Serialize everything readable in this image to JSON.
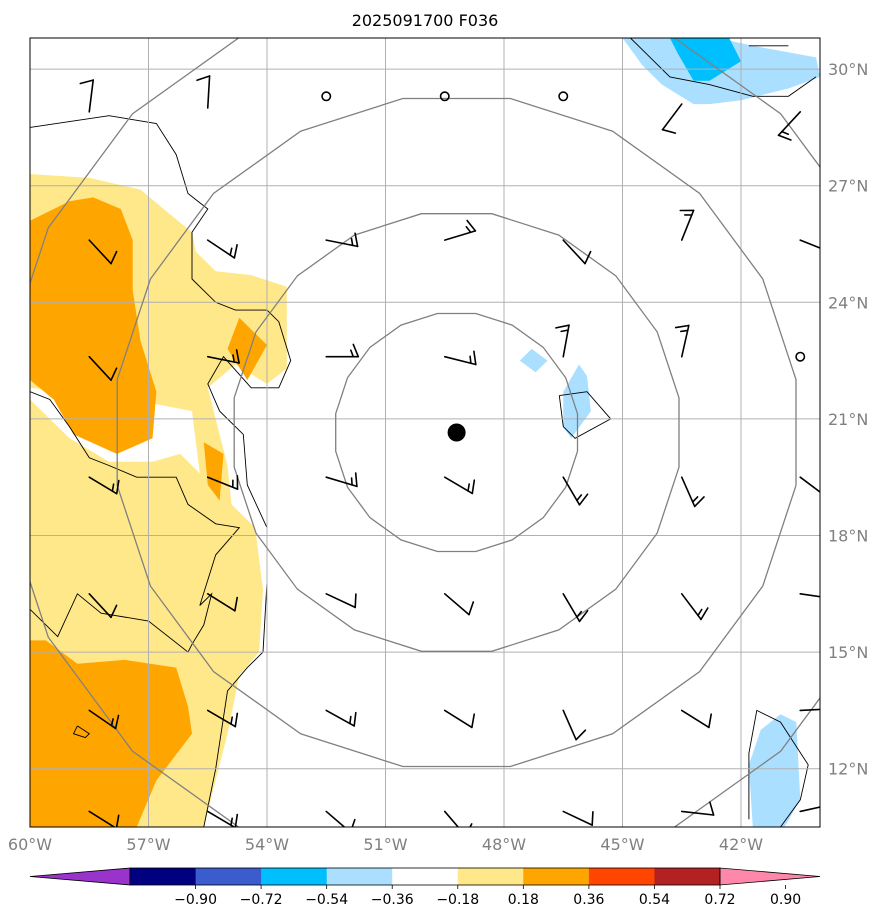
{
  "title": "2025091700 F036",
  "map": {
    "lon_range": [
      -60,
      -40
    ],
    "lat_range": [
      10.5,
      30.8
    ],
    "lon_ticks": [
      {
        "value": -60,
        "label": "60°W"
      },
      {
        "value": -57,
        "label": "57°W"
      },
      {
        "value": -54,
        "label": "54°W"
      },
      {
        "value": -51,
        "label": "51°W"
      },
      {
        "value": -48,
        "label": "48°W"
      },
      {
        "value": -45,
        "label": "45°W"
      },
      {
        "value": -42,
        "label": "42°W"
      }
    ],
    "lat_ticks": [
      {
        "value": 30,
        "label": "30°N"
      },
      {
        "value": 27,
        "label": "27°N"
      },
      {
        "value": 24,
        "label": "24°N"
      },
      {
        "value": 21,
        "label": "21°N"
      },
      {
        "value": 18,
        "label": "18°N"
      },
      {
        "value": 15,
        "label": "15°N"
      },
      {
        "value": 12,
        "label": "12°N"
      }
    ],
    "gridlines": true,
    "center": {
      "lon": -49.2,
      "lat": 20.65
    },
    "range_ring_radii_deg": [
      3.1,
      5.7,
      8.7,
      11.6
    ],
    "colors": {
      "ring": "#808080",
      "grid": "#b0b0b0",
      "barb": "#000000",
      "contour": "#000000",
      "center": "#000000"
    }
  },
  "colorbar": {
    "colors": [
      "#9933cc",
      "#000080",
      "#3a5ccc",
      "#00bfff",
      "#aadfff",
      "#ffffff",
      "#ffe88a",
      "#ffa500",
      "#ff4500",
      "#b22222",
      "#ff88aa"
    ],
    "labels": [
      "−0.90",
      "−0.72",
      "−0.54",
      "−0.36",
      "−0.18",
      "0.18",
      "0.36",
      "0.54",
      "0.72",
      "0.90"
    ],
    "extend": "both"
  },
  "fills": [
    {
      "level": "0.36",
      "color": "#ffe88a",
      "points": [
        [
          -60,
          27.3
        ],
        [
          -58.5,
          27.2
        ],
        [
          -57.2,
          26.9
        ],
        [
          -56.5,
          26.3
        ],
        [
          -55.9,
          25.8
        ],
        [
          -55.8,
          25.3
        ],
        [
          -55.3,
          24.8
        ],
        [
          -54.4,
          24.7
        ],
        [
          -53.5,
          24.4
        ],
        [
          -53.5,
          23.2
        ],
        [
          -53.5,
          22.3
        ],
        [
          -54,
          21.9
        ],
        [
          -54.8,
          22.4
        ],
        [
          -55.5,
          21.8
        ],
        [
          -55.2,
          20.6
        ],
        [
          -55,
          19.8
        ],
        [
          -54.9,
          18.8
        ],
        [
          -54.3,
          18.2
        ],
        [
          -54.1,
          16.6
        ],
        [
          -54.2,
          15.0
        ],
        [
          -54.7,
          14.4
        ],
        [
          -55,
          12.9
        ],
        [
          -55.6,
          10.5
        ],
        [
          -60,
          10.5
        ],
        [
          -60,
          15.7
        ],
        [
          -59,
          15.3
        ],
        [
          -57.8,
          14.8
        ],
        [
          -56.8,
          14.9
        ],
        [
          -55.8,
          14.9
        ],
        [
          -55.5,
          14.5
        ],
        [
          -57.5,
          14
        ],
        [
          -59.8,
          14
        ],
        [
          -60,
          14.5
        ],
        [
          -60,
          15.7
        ],
        [
          -60,
          21.5
        ],
        [
          -59,
          20.5
        ],
        [
          -58,
          19.9
        ],
        [
          -56.9,
          19.9
        ],
        [
          -56.2,
          20.1
        ],
        [
          -55.7,
          19.6
        ],
        [
          -55.9,
          21.2
        ],
        [
          -57.4,
          21.5
        ],
        [
          -60,
          21.8
        ]
      ]
    },
    {
      "level": "0.54",
      "color": "#ffa500",
      "points": [
        [
          -60,
          26.1
        ],
        [
          -59,
          26.6
        ],
        [
          -58.4,
          26.7
        ],
        [
          -57.7,
          26.4
        ],
        [
          -57.4,
          25.6
        ],
        [
          -57.4,
          24.3
        ],
        [
          -57.2,
          23.0
        ],
        [
          -56.8,
          21.7
        ],
        [
          -56.9,
          20.5
        ],
        [
          -57.8,
          20.1
        ],
        [
          -58.9,
          20.6
        ],
        [
          -59.4,
          21.5
        ],
        [
          -60,
          22.0
        ]
      ]
    },
    {
      "level": "0.54",
      "color": "#ffa500",
      "points": [
        [
          -54.7,
          23.6
        ],
        [
          -54.0,
          22.9
        ],
        [
          -54.5,
          22.0
        ],
        [
          -55.0,
          22.8
        ]
      ]
    },
    {
      "level": "0.54",
      "color": "#ffa500",
      "points": [
        [
          -55.6,
          20.4
        ],
        [
          -55.1,
          20.1
        ],
        [
          -55.2,
          18.9
        ],
        [
          -55.5,
          19.3
        ]
      ]
    },
    {
      "level": "0.54",
      "color": "#ffa500",
      "points": [
        [
          -60,
          15.3
        ],
        [
          -59.6,
          15.3
        ],
        [
          -58.8,
          14.7
        ],
        [
          -57.6,
          14.8
        ],
        [
          -56.3,
          14.6
        ],
        [
          -56.0,
          13.6
        ],
        [
          -55.9,
          12.9
        ],
        [
          -56.8,
          11.7
        ],
        [
          -57.3,
          10.5
        ],
        [
          -60,
          10.5
        ]
      ]
    },
    {
      "level": "-0.18",
      "color": "#aadfff",
      "points": [
        [
          -45.0,
          30.8
        ],
        [
          -42.6,
          30.8
        ],
        [
          -41.7,
          30.6
        ],
        [
          -40.1,
          30.3
        ],
        [
          -40,
          29.8
        ],
        [
          -40.8,
          29.5
        ],
        [
          -42.0,
          29.2
        ],
        [
          -42.8,
          29.1
        ],
        [
          -43.2,
          29.1
        ],
        [
          -44.0,
          29.6
        ],
        [
          -44.5,
          30.1
        ]
      ]
    },
    {
      "level": "-0.36",
      "color": "#00bfff",
      "points": [
        [
          -43.8,
          30.8
        ],
        [
          -42.3,
          30.8
        ],
        [
          -42.0,
          30.2
        ],
        [
          -42.8,
          29.7
        ],
        [
          -43.2,
          29.7
        ],
        [
          -43.6,
          30.4
        ]
      ]
    },
    {
      "level": "-0.18",
      "color": "#aadfff",
      "points": [
        [
          -46.1,
          22.4
        ],
        [
          -45.9,
          22.1
        ],
        [
          -45.8,
          21.2
        ],
        [
          -46.3,
          20.5
        ],
        [
          -46.5,
          20.8
        ],
        [
          -46.5,
          21.7
        ]
      ]
    },
    {
      "level": "-0.18",
      "color": "#aadfff",
      "points": [
        [
          -47.3,
          22.8
        ],
        [
          -46.9,
          22.5
        ],
        [
          -47.2,
          22.2
        ],
        [
          -47.6,
          22.5
        ]
      ]
    },
    {
      "level": "-0.18",
      "color": "#aadfff",
      "points": [
        [
          -41.0,
          13.4
        ],
        [
          -40.6,
          13.2
        ],
        [
          -40.5,
          11.2
        ],
        [
          -40.9,
          10.5
        ],
        [
          -41.7,
          10.5
        ],
        [
          -41.8,
          12.1
        ],
        [
          -41.5,
          13.0
        ]
      ]
    }
  ],
  "contours": [
    [
      [
        -60,
        28.5
      ],
      [
        -58.0,
        28.8
      ],
      [
        -56.8,
        28.6
      ],
      [
        -56.3,
        27.8
      ],
      [
        -56.0,
        26.8
      ],
      [
        -55.5,
        26.4
      ],
      [
        -55.9,
        25.8
      ],
      [
        -55.9,
        24.6
      ],
      [
        -55.3,
        24.0
      ],
      [
        -54.8,
        23.8
      ],
      [
        -54.0,
        23.8
      ],
      [
        -53.7,
        23.5
      ],
      [
        -53.4,
        22.5
      ],
      [
        -53.7,
        21.8
      ],
      [
        -54.4,
        21.8
      ],
      [
        -55.1,
        22.6
      ],
      [
        -55.5,
        21.9
      ],
      [
        -55.2,
        21.2
      ],
      [
        -54.6,
        20.6
      ],
      [
        -54.5,
        19.3
      ],
      [
        -54.0,
        18.2
      ],
      [
        -54.0,
        16.8
      ],
      [
        -54.1,
        15.0
      ],
      [
        -54.5,
        14.6
      ],
      [
        -55.0,
        14.0
      ],
      [
        -55.3,
        12.0
      ],
      [
        -55.6,
        10.5
      ]
    ],
    [
      [
        -60,
        21.7
      ],
      [
        -59.5,
        21.5
      ],
      [
        -59.0,
        20.8
      ],
      [
        -58.5,
        20.0
      ],
      [
        -58.0,
        19.8
      ],
      [
        -57.3,
        19.5
      ],
      [
        -56.3,
        19.5
      ],
      [
        -56.0,
        18.8
      ],
      [
        -55.3,
        18.3
      ],
      [
        -54.7,
        18.2
      ],
      [
        -55.3,
        17.5
      ],
      [
        -55.7,
        16.2
      ],
      [
        -55.4,
        16.5
      ],
      [
        -55.6,
        15.7
      ],
      [
        -55.9,
        15.2
      ],
      [
        -56.0,
        15.0
      ],
      [
        -57.0,
        15.8
      ],
      [
        -58.2,
        16.0
      ],
      [
        -58.8,
        16.5
      ],
      [
        -59.3,
        15.4
      ],
      [
        -60,
        16.1
      ]
    ],
    [
      [
        -44.8,
        30.8
      ],
      [
        -43.8,
        29.8
      ],
      [
        -42.8,
        29.6
      ],
      [
        -41.7,
        29.3
      ],
      [
        -40.8,
        29.3
      ],
      [
        -40.1,
        29.8
      ]
    ],
    [
      [
        -41.8,
        30.6
      ],
      [
        -40.8,
        30.6
      ]
    ],
    [
      [
        -46.6,
        21.6
      ],
      [
        -45.9,
        21.7
      ],
      [
        -45.3,
        21.0
      ],
      [
        -46.2,
        20.5
      ],
      [
        -46.5,
        20.8
      ],
      [
        -46.6,
        21.6
      ]
    ],
    [
      [
        -41.8,
        10.7
      ],
      [
        -41.8,
        12.4
      ],
      [
        -41.6,
        13.5
      ],
      [
        -41.0,
        13.2
      ],
      [
        -40.3,
        12.1
      ],
      [
        -40.5,
        11.2
      ],
      [
        -41.0,
        10.5
      ]
    ],
    [
      [
        -58.8,
        13.1
      ],
      [
        -58.5,
        12.9
      ],
      [
        -58.6,
        12.8
      ],
      [
        -58.9,
        12.9
      ],
      [
        -58.8,
        13.1
      ]
    ]
  ],
  "wind_barbs": [
    {
      "lon": -58.5,
      "lat": 28.9,
      "u": -1.0,
      "v": -8.0
    },
    {
      "lon": -55.5,
      "lat": 29.0,
      "u": -0.5,
      "v": -8.5
    },
    {
      "lon": -52.5,
      "lat": 29.3,
      "calm": true
    },
    {
      "lon": -49.5,
      "lat": 29.3,
      "calm": true
    },
    {
      "lon": -46.5,
      "lat": 29.3,
      "calm": true
    },
    {
      "lon": -43.5,
      "lat": 29.1,
      "u": 3.0,
      "v": 4.0
    },
    {
      "lon": -40.5,
      "lat": 28.9,
      "u": 6.5,
      "v": 7.0
    },
    {
      "lon": -58.5,
      "lat": 25.6,
      "u": -6.0,
      "v": 6.5
    },
    {
      "lon": -55.5,
      "lat": 25.6,
      "u": -9.0,
      "v": 6.0
    },
    {
      "lon": -52.5,
      "lat": 25.6,
      "u": -10.0,
      "v": 2.0
    },
    {
      "lon": -49.5,
      "lat": 25.6,
      "u": -10.0,
      "v": -3.0
    },
    {
      "lon": -46.5,
      "lat": 25.6,
      "u": -6.0,
      "v": 6.5
    },
    {
      "lon": -43.5,
      "lat": 25.6,
      "u": -4.0,
      "v": -10.0
    },
    {
      "lon": -40.5,
      "lat": 25.6,
      "u": -10.0,
      "v": 4.0
    },
    {
      "lon": -58.5,
      "lat": 22.6,
      "u": -6.0,
      "v": 6.5
    },
    {
      "lon": -55.5,
      "lat": 22.6,
      "u": -10.0,
      "v": 2.0
    },
    {
      "lon": -52.5,
      "lat": 22.6,
      "u": -11.0,
      "v": 0.0
    },
    {
      "lon": -49.5,
      "lat": 22.6,
      "u": -10.0,
      "v": 2.5
    },
    {
      "lon": -46.5,
      "lat": 22.6,
      "u": -2.0,
      "v": -11.0
    },
    {
      "lon": -43.5,
      "lat": 22.6,
      "u": -2.5,
      "v": -11.0
    },
    {
      "lon": -40.5,
      "lat": 22.6,
      "calm": true
    },
    {
      "lon": -58.5,
      "lat": 19.5,
      "u": -10.0,
      "v": 6.0
    },
    {
      "lon": -55.5,
      "lat": 19.5,
      "u": -10.0,
      "v": 4.0
    },
    {
      "lon": -52.5,
      "lat": 19.5,
      "u": -10.0,
      "v": 3.0
    },
    {
      "lon": -49.5,
      "lat": 19.5,
      "u": -8.5,
      "v": 5.0
    },
    {
      "lon": -46.5,
      "lat": 19.5,
      "u": -5.0,
      "v": 8.5
    },
    {
      "lon": -43.5,
      "lat": 19.5,
      "u": -4.0,
      "v": 9.0
    },
    {
      "lon": -40.5,
      "lat": 19.5,
      "u": -8.0,
      "v": 6.0
    },
    {
      "lon": -58.5,
      "lat": 16.5,
      "u": -6.0,
      "v": 6.5
    },
    {
      "lon": -55.5,
      "lat": 16.5,
      "u": -8.0,
      "v": 5.0
    },
    {
      "lon": -52.5,
      "lat": 16.5,
      "u": -8.5,
      "v": 4.0
    },
    {
      "lon": -49.5,
      "lat": 16.5,
      "u": -7.0,
      "v": 6.0
    },
    {
      "lon": -46.5,
      "lat": 16.5,
      "u": -5.0,
      "v": 8.5
    },
    {
      "lon": -43.5,
      "lat": 16.5,
      "u": -6.0,
      "v": 8.0
    },
    {
      "lon": -40.5,
      "lat": 16.5,
      "u": -10.0,
      "v": 1.5
    },
    {
      "lon": -58.5,
      "lat": 13.5,
      "u": -8.0,
      "v": 5.5
    },
    {
      "lon": -55.5,
      "lat": 13.5,
      "u": -8.5,
      "v": 5.0
    },
    {
      "lon": -52.5,
      "lat": 13.5,
      "u": -9.0,
      "v": 5.0
    },
    {
      "lon": -49.5,
      "lat": 13.5,
      "u": -8.0,
      "v": 5.0
    },
    {
      "lon": -46.5,
      "lat": 13.5,
      "u": -3.5,
      "v": 8.0
    },
    {
      "lon": -43.5,
      "lat": 13.5,
      "u": -8.0,
      "v": 5.0
    },
    {
      "lon": -40.5,
      "lat": 13.5,
      "u": -10.0,
      "v": -0.5
    },
    {
      "lon": -58.5,
      "lat": 10.9,
      "u": -8.0,
      "v": 5.0
    },
    {
      "lon": -55.5,
      "lat": 10.9,
      "u": -8.5,
      "v": 5.0
    },
    {
      "lon": -52.5,
      "lat": 10.9,
      "u": -7.0,
      "v": 6.0
    },
    {
      "lon": -49.5,
      "lat": 10.9,
      "u": -6.0,
      "v": 7.0
    },
    {
      "lon": -46.5,
      "lat": 10.9,
      "u": -8.5,
      "v": 4.0
    },
    {
      "lon": -43.5,
      "lat": 10.9,
      "u": -9.0,
      "v": 1.0
    },
    {
      "lon": -40.5,
      "lat": 10.9,
      "u": -9.0,
      "v": -2.0
    }
  ]
}
